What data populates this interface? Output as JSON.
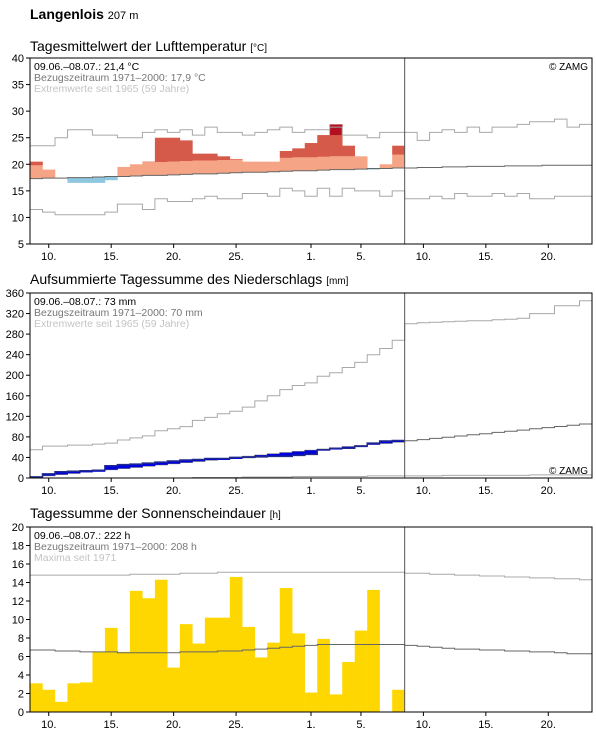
{
  "station": {
    "name": "Langenlois",
    "elevation": "207 m"
  },
  "colors": {
    "temp_warm_dark": "#d65a4a",
    "temp_warm_light": "#f5a585",
    "temp_record_hot": "#b21020",
    "temp_cold": "#8fc6e0",
    "precip_bar": "#0000e0",
    "precip_line": "#1f2a8a",
    "sunshine_bar": "#ffd700",
    "climate_line": "#666666",
    "extreme_line": "#a8a8a8"
  },
  "x_tick_labels": [
    "10.",
    "15.",
    "20.",
    "25.",
    "1.",
    "5.",
    "10.",
    "15.",
    "20."
  ],
  "panels": [
    {
      "title": "Tagesmittelwert der Lufttemperatur",
      "unit": "[°C]",
      "legend_period": "09.06.–08.07.: 21,4 °C",
      "legend_ref": "Bezugszeitraum 1971–2000: 17,9 °C",
      "legend_extreme": "Extremwerte seit 1965 (59 Jahre)",
      "credit": "© ZAMG",
      "credit_position": "top-right"
    },
    {
      "title": "Aufsummierte Tagessumme des Niederschlags",
      "unit": "[mm]",
      "legend_period": "09.06.–08.07.: 73 mm",
      "legend_ref": "Bezugszeitraum 1971–2000: 70 mm",
      "legend_extreme": "Extremwerte seit 1965 (59 Jahre)",
      "credit": "© ZAMG",
      "credit_position": "bottom-right"
    },
    {
      "title": "Tagessumme der Sonnenscheindauer",
      "unit": "[h]",
      "legend_period": "09.06.–08.07.: 222 h",
      "legend_ref": "Bezugszeitraum 1971–2000: 208 h",
      "legend_extreme": "Maxima seit 1971",
      "credit": "",
      "credit_position": ""
    }
  ],
  "chart_data": [
    {
      "type": "area",
      "title": "Tagesmittelwert der Lufttemperatur",
      "unit": "°C",
      "ylim": [
        5,
        40
      ],
      "y_ticks": [
        5,
        10,
        15,
        20,
        25,
        30,
        35,
        40
      ],
      "x_start": "2024-06-09",
      "days": 45,
      "observed_days": 30,
      "today_line": "2024-07-09",
      "observed": [
        20.5,
        19.0,
        17.5,
        16.5,
        16.5,
        16.5,
        17.0,
        19.5,
        20.0,
        20.5,
        25.0,
        25.0,
        24.5,
        22.0,
        22.0,
        21.5,
        21.0,
        20.5,
        20.5,
        20.5,
        22.5,
        23.0,
        24.0,
        25.5,
        27.5,
        23.5,
        21.5,
        19.0,
        20.0,
        23.5
      ],
      "climate_mean": [
        17.3,
        17.4,
        17.4,
        17.5,
        17.5,
        17.6,
        17.7,
        17.7,
        17.8,
        17.9,
        17.9,
        18.0,
        18.1,
        18.2,
        18.2,
        18.3,
        18.4,
        18.5,
        18.5,
        18.6,
        18.7,
        18.8,
        18.8,
        18.9,
        19.0,
        19.0,
        19.1,
        19.2,
        19.2,
        19.3,
        19.3,
        19.4,
        19.4,
        19.5,
        19.5,
        19.6,
        19.6,
        19.6,
        19.7,
        19.7,
        19.7,
        19.8,
        19.8,
        19.8,
        19.8
      ],
      "extreme_max": [
        23.5,
        23.5,
        25.0,
        26.5,
        26.5,
        25.5,
        25.5,
        25.0,
        25.0,
        26.0,
        26.5,
        26.0,
        26.5,
        25.5,
        27.0,
        26.0,
        26.0,
        25.5,
        26.0,
        26.5,
        27.0,
        26.0,
        26.5,
        26.5,
        27.0,
        25.5,
        25.5,
        25.0,
        26.0,
        26.0,
        26.0,
        24.5,
        26.0,
        26.5,
        26.0,
        27.0,
        26.0,
        27.0,
        27.0,
        27.5,
        28.0,
        28.0,
        28.5,
        27.0,
        27.5
      ],
      "extreme_min": [
        11.5,
        11.0,
        10.5,
        10.5,
        10.5,
        10.5,
        11.0,
        12.5,
        12.5,
        11.5,
        13.5,
        13.0,
        13.0,
        13.5,
        14.0,
        13.5,
        13.5,
        14.5,
        14.5,
        14.0,
        15.5,
        15.0,
        14.0,
        15.5,
        14.0,
        15.5,
        15.0,
        15.0,
        14.0,
        15.0,
        13.5,
        13.5,
        14.0,
        13.5,
        14.5,
        14.0,
        14.0,
        14.5,
        14.0,
        14.5,
        13.5,
        13.5,
        14.0,
        14.0,
        14.0
      ],
      "record_days": [
        {
          "day_index": 24,
          "from": 25.5,
          "to": 27.5
        }
      ]
    },
    {
      "type": "line",
      "title": "Aufsummierte Tagessumme des Niederschlags",
      "unit": "mm",
      "ylim": [
        0,
        360
      ],
      "y_ticks": [
        0,
        40,
        80,
        120,
        160,
        200,
        240,
        280,
        320,
        360
      ],
      "x_start": "2024-06-09",
      "days": 45,
      "observed_days": 30,
      "today_line": "2024-07-09",
      "observed_cumulative": [
        2,
        8,
        12,
        13,
        14,
        15,
        24,
        26,
        27,
        29,
        31,
        33,
        35,
        36,
        38,
        38,
        40,
        40,
        41,
        42,
        42,
        44,
        46,
        55,
        58,
        58,
        62,
        68,
        72,
        73
      ],
      "climate_cumulative": [
        2.3,
        4.7,
        7.0,
        9.3,
        11.7,
        14.0,
        16.3,
        18.7,
        21.0,
        23.3,
        25.7,
        28.0,
        30.3,
        32.7,
        35.0,
        37.3,
        39.7,
        42.0,
        44.3,
        46.7,
        49.0,
        51.3,
        53.7,
        56.0,
        58.3,
        60.7,
        63.0,
        65.3,
        67.7,
        70.0,
        72.3,
        74.7,
        77.0,
        79.3,
        81.7,
        84.0,
        86.3,
        88.7,
        91.0,
        93.3,
        95.7,
        98.0,
        100.3,
        102.7,
        105.0
      ],
      "extreme_max": [
        55,
        62,
        62,
        64,
        64,
        66,
        68,
        74,
        78,
        82,
        92,
        96,
        100,
        112,
        118,
        125,
        130,
        138,
        150,
        160,
        172,
        180,
        185,
        198,
        205,
        215,
        225,
        240,
        252,
        268,
        300,
        302,
        303,
        304,
        305,
        306,
        306,
        308,
        309,
        311,
        320,
        320,
        335,
        335,
        345
      ],
      "extreme_min": [
        0,
        0,
        0,
        0,
        0,
        0,
        0,
        0,
        0,
        0,
        0,
        0,
        0,
        1,
        1,
        1,
        1,
        2,
        2,
        2,
        2,
        3,
        3,
        3,
        3,
        3,
        3,
        4,
        4,
        4,
        4,
        4,
        4,
        5,
        5,
        5,
        5,
        5,
        5,
        5,
        6,
        6,
        6,
        6,
        6
      ]
    },
    {
      "type": "bar",
      "title": "Tagessumme der Sonnenscheindauer",
      "unit": "h",
      "ylim": [
        0,
        20
      ],
      "y_ticks": [
        0,
        2,
        4,
        6,
        8,
        10,
        12,
        14,
        16,
        18,
        20
      ],
      "x_start": "2024-06-09",
      "days": 45,
      "observed_days": 30,
      "today_line": "2024-07-09",
      "values": [
        3.1,
        2.4,
        1.1,
        3.1,
        3.2,
        6.5,
        9.1,
        6.5,
        13.1,
        12.3,
        14.3,
        4.8,
        9.5,
        7.4,
        10.2,
        10.2,
        14.6,
        9.2,
        5.9,
        7.5,
        13.4,
        8.5,
        2.1,
        7.9,
        1.9,
        5.4,
        8.8,
        13.2,
        0,
        2.4
      ],
      "climate_mean": [
        6.7,
        6.7,
        6.6,
        6.6,
        6.5,
        6.5,
        6.5,
        6.4,
        6.4,
        6.4,
        6.4,
        6.4,
        6.5,
        6.5,
        6.5,
        6.6,
        6.6,
        6.7,
        6.8,
        6.9,
        7.0,
        7.1,
        7.2,
        7.3,
        7.3,
        7.3,
        7.3,
        7.3,
        7.3,
        7.3,
        7.2,
        7.1,
        7.0,
        6.9,
        6.8,
        6.8,
        6.7,
        6.7,
        6.6,
        6.6,
        6.5,
        6.5,
        6.4,
        6.3,
        6.3
      ],
      "extreme_max": [
        14.8,
        14.8,
        14.8,
        14.8,
        14.8,
        14.8,
        14.8,
        14.8,
        14.9,
        14.9,
        14.9,
        14.9,
        15.0,
        15.0,
        15.0,
        15.1,
        15.1,
        15.1,
        15.1,
        15.1,
        15.1,
        15.1,
        15.1,
        15.1,
        15.1,
        15.1,
        15.1,
        15.1,
        15.1,
        15.1,
        15.0,
        15.0,
        14.9,
        14.9,
        14.8,
        14.8,
        14.7,
        14.7,
        14.6,
        14.6,
        14.5,
        14.5,
        14.4,
        14.4,
        14.3
      ]
    }
  ]
}
